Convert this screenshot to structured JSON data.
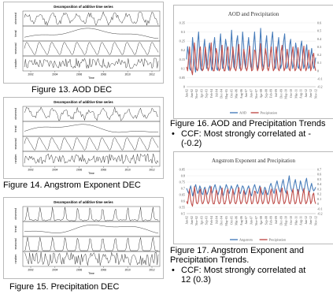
{
  "decomp_title": "Decomposition of additive time series",
  "decomp_title_alt": "Decomposition of additive time series",
  "decomp_xlabel": "Time",
  "decomp_panel_labels": [
    "observed",
    "trend",
    "seasonal",
    "random"
  ],
  "decomp_year_labels": [
    "2002",
    "2004",
    "2006",
    "2008",
    "2010",
    "2012"
  ],
  "figures": {
    "fig13": "Figure 13. AOD DEC",
    "fig14": "Figure 14. Angstrom Exponent DEC",
    "fig15": "Figure 15. Precipitation DEC",
    "fig16": "Figure 16. AOD and Precipitation Trends",
    "fig17_line1": "Figure 17. Angstrom Exponent and",
    "fig17_line2": "Precipitation Trends."
  },
  "bullets": {
    "b1_line1": "CCF: Most strongly correlated at -",
    "b1_line2": "(-0.2)",
    "b2_line1": "CCF: Most strongly correlated at",
    "b2_line2": "12 (0.3)",
    "symbol": "•"
  },
  "chart_data": [
    {
      "type": "line",
      "title": "AOD and Precipitation",
      "x_ticks": [
        "Jan-02",
        "Jun-02",
        "Nov-02",
        "Apr-03",
        "Sep-03",
        "Feb-04",
        "Jul-04",
        "Dec-04",
        "May-05",
        "Oct-05",
        "Mar-06",
        "Aug-06",
        "Jan-07",
        "Jun-07",
        "Nov-07",
        "Apr-08",
        "Sep-08",
        "Feb-09",
        "Jul-09",
        "Dec-09",
        "May-10",
        "Oct-10",
        "Mar-11",
        "Aug-11",
        "Jan-12",
        "Jun-12",
        "Nov-12"
      ],
      "y_left_ticks": [
        "0.35",
        "0.3",
        "0.25",
        "0.2",
        "0.15",
        "0.1",
        "0.05",
        "0"
      ],
      "y_left_lim": [
        0,
        0.35
      ],
      "y_right_ticks": [
        "0.6",
        "0.5",
        "0.4",
        "0.3",
        "0.2",
        "0.1",
        "0",
        "-0.1",
        "-0.2"
      ],
      "y_right_lim": [
        -0.2,
        0.6
      ],
      "series": [
        {
          "name": "AOD",
          "color": "#4a7ebb",
          "axis": "left",
          "values": [
            0.15,
            0.22,
            0.18,
            0.1,
            0.09,
            0.16,
            0.27,
            0.2,
            0.12,
            0.08,
            0.14,
            0.24,
            0.3,
            0.19,
            0.1,
            0.09,
            0.13,
            0.21,
            0.26,
            0.16,
            0.1,
            0.12,
            0.2,
            0.24,
            0.15,
            0.09,
            0.11,
            0.22,
            0.27,
            0.18,
            0.1,
            0.09,
            0.15,
            0.23,
            0.29,
            0.17,
            0.1,
            0.11,
            0.19,
            0.26,
            0.22,
            0.12,
            0.09,
            0.14,
            0.21,
            0.31,
            0.2,
            0.11,
            0.1,
            0.16,
            0.25,
            0.28,
            0.17,
            0.1,
            0.12,
            0.2,
            0.3,
            0.23,
            0.13,
            0.1,
            0.15,
            0.22,
            0.27,
            0.19,
            0.11,
            0.1,
            0.17,
            0.24,
            0.3,
            0.2,
            0.12,
            0.1,
            0.14,
            0.21,
            0.32,
            0.22,
            0.12,
            0.1,
            0.15,
            0.23,
            0.28,
            0.18,
            0.11,
            0.12,
            0.2,
            0.26,
            0.3,
            0.19,
            0.11,
            0.1,
            0.16,
            0.22,
            0.27,
            0.17,
            0.1,
            0.12,
            0.19,
            0.25,
            0.29,
            0.18,
            0.1,
            0.11,
            0.16,
            0.23,
            0.26,
            0.15,
            0.1,
            0.12,
            0.18,
            0.24,
            0.2,
            0.11,
            0.1,
            0.14,
            0.22,
            0.25,
            0.16,
            0.1,
            0.12,
            0.19,
            0.23,
            0.15,
            0.1,
            0.11,
            0.17,
            0.21,
            0.14,
            0.1,
            0.12,
            0.16
          ]
        },
        {
          "name": "Precipitation",
          "color": "#c0504d",
          "axis": "right",
          "values": [
            0.05,
            0.0,
            0.15,
            0.3,
            0.1,
            0.0,
            -0.05,
            0.1,
            0.35,
            0.2,
            0.02,
            0.0,
            0.05,
            0.25,
            0.3,
            0.08,
            0.0,
            0.02,
            0.1,
            0.3,
            0.2,
            0.05,
            0.0,
            0.05,
            0.2,
            0.35,
            0.1,
            0.0,
            0.0,
            0.1,
            0.28,
            0.22,
            0.05,
            0.0,
            0.02,
            0.15,
            0.32,
            0.12,
            0.0,
            0.0,
            0.08,
            0.25,
            0.3,
            0.1,
            0.0,
            0.03,
            0.12,
            0.3,
            0.18,
            0.02,
            0.0,
            0.06,
            0.22,
            0.33,
            0.1,
            0.0,
            0.02,
            0.1,
            0.27,
            0.2,
            0.04,
            0.0,
            0.05,
            0.2,
            0.31,
            0.12,
            0.0,
            0.01,
            0.1,
            0.26,
            0.24,
            0.06,
            0.0,
            0.04,
            0.18,
            0.34,
            0.1,
            0.0,
            0.02,
            0.12,
            0.28,
            0.2,
            0.03,
            0.0,
            0.06,
            0.22,
            0.3,
            0.1,
            0.0,
            0.02,
            0.15,
            0.3,
            0.15,
            0.02,
            0.0,
            0.08,
            0.25,
            0.32,
            0.1,
            0.0,
            0.03,
            0.12,
            0.27,
            0.18,
            0.02,
            0.0,
            0.07,
            0.22,
            0.3,
            0.09,
            0.0,
            0.02,
            0.14,
            0.29,
            0.17,
            0.02,
            0.0,
            0.06,
            0.2,
            0.31,
            0.1,
            0.0,
            0.03,
            0.12,
            0.26,
            0.15,
            0.0,
            0.05,
            0.18,
            0.22,
            0.06,
            0.0
          ]
        }
      ]
    },
    {
      "type": "line",
      "title": "Angstrom Exponent and Precipitation",
      "x_ticks": [
        "Jan-02",
        "Jun-02",
        "Nov-02",
        "Apr-03",
        "Sep-03",
        "Feb-04",
        "Jul-04",
        "Dec-04",
        "May-05",
        "Oct-05",
        "Mar-06",
        "Aug-06",
        "Jan-07",
        "Jun-07",
        "Nov-07",
        "Apr-08",
        "Sep-08",
        "Feb-09",
        "Jul-09",
        "Dec-09",
        "May-10",
        "Oct-10",
        "Mar-11",
        "Aug-11",
        "Jan-12",
        "Jun-12",
        "Nov-12"
      ],
      "y_left_ticks": [
        "0.85",
        "0.8",
        "0.75",
        "0.7",
        "0.65",
        "0.6",
        "0.55",
        "0.5"
      ],
      "y_left_lim": [
        0.5,
        0.85
      ],
      "y_right_ticks": [
        "0.7",
        "0.6",
        "0.5",
        "0.4",
        "0.3",
        "0.2",
        "0.1",
        "0",
        "-0.1",
        "-0.2"
      ],
      "y_right_lim": [
        -0.2,
        0.7
      ],
      "series": [
        {
          "name": "Angstrom",
          "color": "#4a7ebb",
          "axis": "left",
          "values": [
            0.7,
            0.68,
            0.66,
            0.69,
            0.72,
            0.68,
            0.64,
            0.67,
            0.71,
            0.73,
            0.69,
            0.66,
            0.68,
            0.72,
            0.7,
            0.66,
            0.65,
            0.69,
            0.71,
            0.68,
            0.65,
            0.67,
            0.7,
            0.72,
            0.69,
            0.66,
            0.68,
            0.71,
            0.73,
            0.7,
            0.67,
            0.65,
            0.68,
            0.72,
            0.7,
            0.66,
            0.64,
            0.67,
            0.7,
            0.73,
            0.71,
            0.68,
            0.66,
            0.69,
            0.72,
            0.7,
            0.67,
            0.65,
            0.68,
            0.71,
            0.73,
            0.7,
            0.67,
            0.66,
            0.69,
            0.72,
            0.71,
            0.68,
            0.65,
            0.67,
            0.7,
            0.72,
            0.69,
            0.66,
            0.64,
            0.68,
            0.71,
            0.73,
            0.7,
            0.67,
            0.66,
            0.69,
            0.72,
            0.7,
            0.67,
            0.65,
            0.68,
            0.71,
            0.69,
            0.66,
            0.65,
            0.68,
            0.72,
            0.74,
            0.71,
            0.68,
            0.66,
            0.7,
            0.73,
            0.76,
            0.72,
            0.69,
            0.67,
            0.7,
            0.74,
            0.77,
            0.72,
            0.68,
            0.66,
            0.71,
            0.75,
            0.8,
            0.73,
            0.69,
            0.67,
            0.7,
            0.74,
            0.77,
            0.72,
            0.68,
            0.66,
            0.7,
            0.76,
            0.73,
            0.69,
            0.67,
            0.7,
            0.75,
            0.78,
            0.72,
            0.68,
            0.67,
            0.71,
            0.74,
            0.7,
            0.68,
            0.69,
            0.71
          ]
        },
        {
          "name": "Precipitation",
          "color": "#c0504d",
          "axis": "right",
          "values": [
            0.05,
            0.0,
            0.15,
            0.3,
            0.1,
            0.0,
            -0.05,
            0.1,
            0.35,
            0.2,
            0.02,
            0.0,
            0.05,
            0.25,
            0.3,
            0.08,
            0.0,
            0.02,
            0.1,
            0.3,
            0.2,
            0.05,
            0.0,
            0.05,
            0.2,
            0.35,
            0.1,
            0.0,
            0.0,
            0.1,
            0.28,
            0.22,
            0.05,
            0.0,
            0.02,
            0.15,
            0.32,
            0.12,
            0.0,
            0.0,
            0.08,
            0.25,
            0.3,
            0.1,
            0.0,
            0.03,
            0.12,
            0.3,
            0.18,
            0.02,
            0.0,
            0.06,
            0.22,
            0.33,
            0.1,
            0.0,
            0.02,
            0.1,
            0.27,
            0.2,
            0.04,
            0.0,
            0.05,
            0.2,
            0.31,
            0.12,
            0.0,
            0.01,
            0.1,
            0.26,
            0.24,
            0.06,
            0.0,
            0.04,
            0.18,
            0.34,
            0.1,
            0.0,
            0.02,
            0.12,
            0.28,
            0.2,
            0.03,
            0.0,
            0.06,
            0.22,
            0.3,
            0.1,
            0.0,
            0.02,
            0.15,
            0.3,
            0.15,
            0.02,
            0.0,
            0.08,
            0.25,
            0.32,
            0.1,
            0.0,
            0.03,
            0.12,
            0.27,
            0.18,
            0.02,
            0.0,
            0.07,
            0.22,
            0.3,
            0.09,
            0.0,
            0.02,
            0.14,
            0.29,
            0.17,
            0.02,
            0.0,
            0.06,
            0.2,
            0.31,
            0.1,
            0.0,
            0.03,
            0.12,
            0.26,
            0.15,
            0.0,
            0.05,
            0.18,
            0.22,
            0.06,
            0.0
          ]
        }
      ]
    }
  ]
}
